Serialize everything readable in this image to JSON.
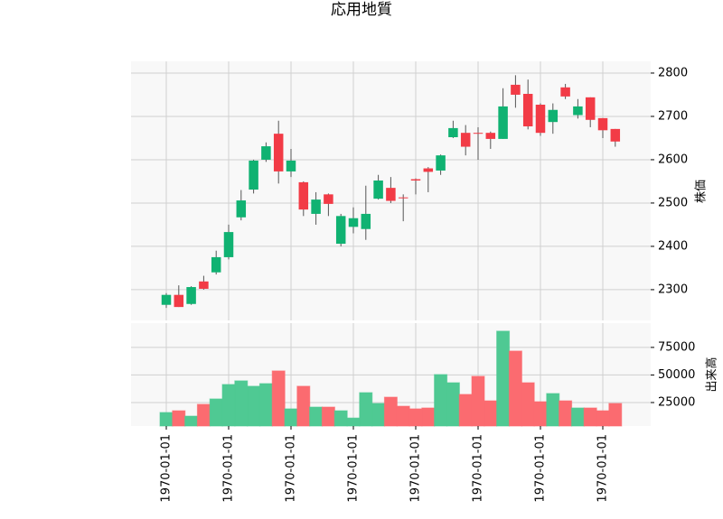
{
  "chart_data": [
    {
      "type": "candlestick",
      "title": "応用地質",
      "ylabel": "株価",
      "up_color": "#10b272",
      "down_color": "#f23b46",
      "open": [
        2265,
        2288,
        2267,
        2319,
        2340,
        2375,
        2467,
        2531,
        2600,
        2660,
        2573,
        2548,
        2475,
        2520,
        2406,
        2445,
        2440,
        2510,
        2535,
        2513,
        2555,
        2580,
        2575,
        2652,
        2662,
        2662,
        2662,
        2648,
        2773,
        2752,
        2727,
        2687,
        2767,
        2703,
        2744,
        2696,
        2671
      ],
      "high": [
        2292,
        2310,
        2308,
        2332,
        2390,
        2450,
        2530,
        2600,
        2640,
        2690,
        2625,
        2550,
        2525,
        2522,
        2475,
        2490,
        2540,
        2565,
        2560,
        2520,
        2557,
        2583,
        2612,
        2690,
        2680,
        2675,
        2665,
        2765,
        2795,
        2785,
        2730,
        2730,
        2775,
        2740,
        2744,
        2696,
        2671
      ],
      "low": [
        2258,
        2260,
        2265,
        2300,
        2335,
        2370,
        2460,
        2522,
        2595,
        2545,
        2560,
        2470,
        2450,
        2470,
        2400,
        2430,
        2415,
        2508,
        2500,
        2458,
        2520,
        2525,
        2565,
        2650,
        2610,
        2600,
        2625,
        2648,
        2720,
        2670,
        2655,
        2660,
        2740,
        2695,
        2675,
        2650,
        2630
      ],
      "close": [
        2288,
        2260,
        2306,
        2302,
        2375,
        2433,
        2506,
        2598,
        2631,
        2573,
        2598,
        2485,
        2508,
        2498,
        2470,
        2465,
        2475,
        2552,
        2505,
        2511,
        2552,
        2572,
        2610,
        2673,
        2630,
        2660,
        2648,
        2723,
        2750,
        2677,
        2662,
        2715,
        2746,
        2723,
        2692,
        2668,
        2642
      ],
      "ylim": [
        2229,
        2827
      ],
      "yticks": [
        2300,
        2400,
        2500,
        2600,
        2700,
        2800
      ],
      "grid": true
    },
    {
      "type": "volume",
      "ylabel": "出来高",
      "up_color": "#4fc993",
      "down_color": "#fb6b70",
      "categories": [
        "1970-01-01",
        null,
        null,
        null,
        null,
        "1970-01-01",
        null,
        null,
        null,
        null,
        "1970-01-01",
        null,
        null,
        null,
        null,
        "1970-01-01",
        null,
        null,
        null,
        null,
        "1970-01-01",
        null,
        null,
        null,
        null,
        "1970-01-01",
        null,
        null,
        null,
        null,
        "1970-01-01",
        null,
        null,
        null,
        null,
        "1970-01-01",
        null
      ],
      "values": [
        16000,
        17600,
        12700,
        23400,
        28300,
        41400,
        44700,
        39800,
        42200,
        53700,
        19300,
        39800,
        20900,
        20900,
        17600,
        11000,
        34000,
        24200,
        29900,
        21700,
        19300,
        20100,
        50400,
        43000,
        32400,
        48800,
        26600,
        89750,
        71700,
        43000,
        25800,
        33200,
        26600,
        20100,
        20100,
        17600,
        24200
      ],
      "ylim": [
        3700,
        97000
      ],
      "yticks": [
        25000,
        50000,
        75000
      ],
      "grid": true
    }
  ]
}
